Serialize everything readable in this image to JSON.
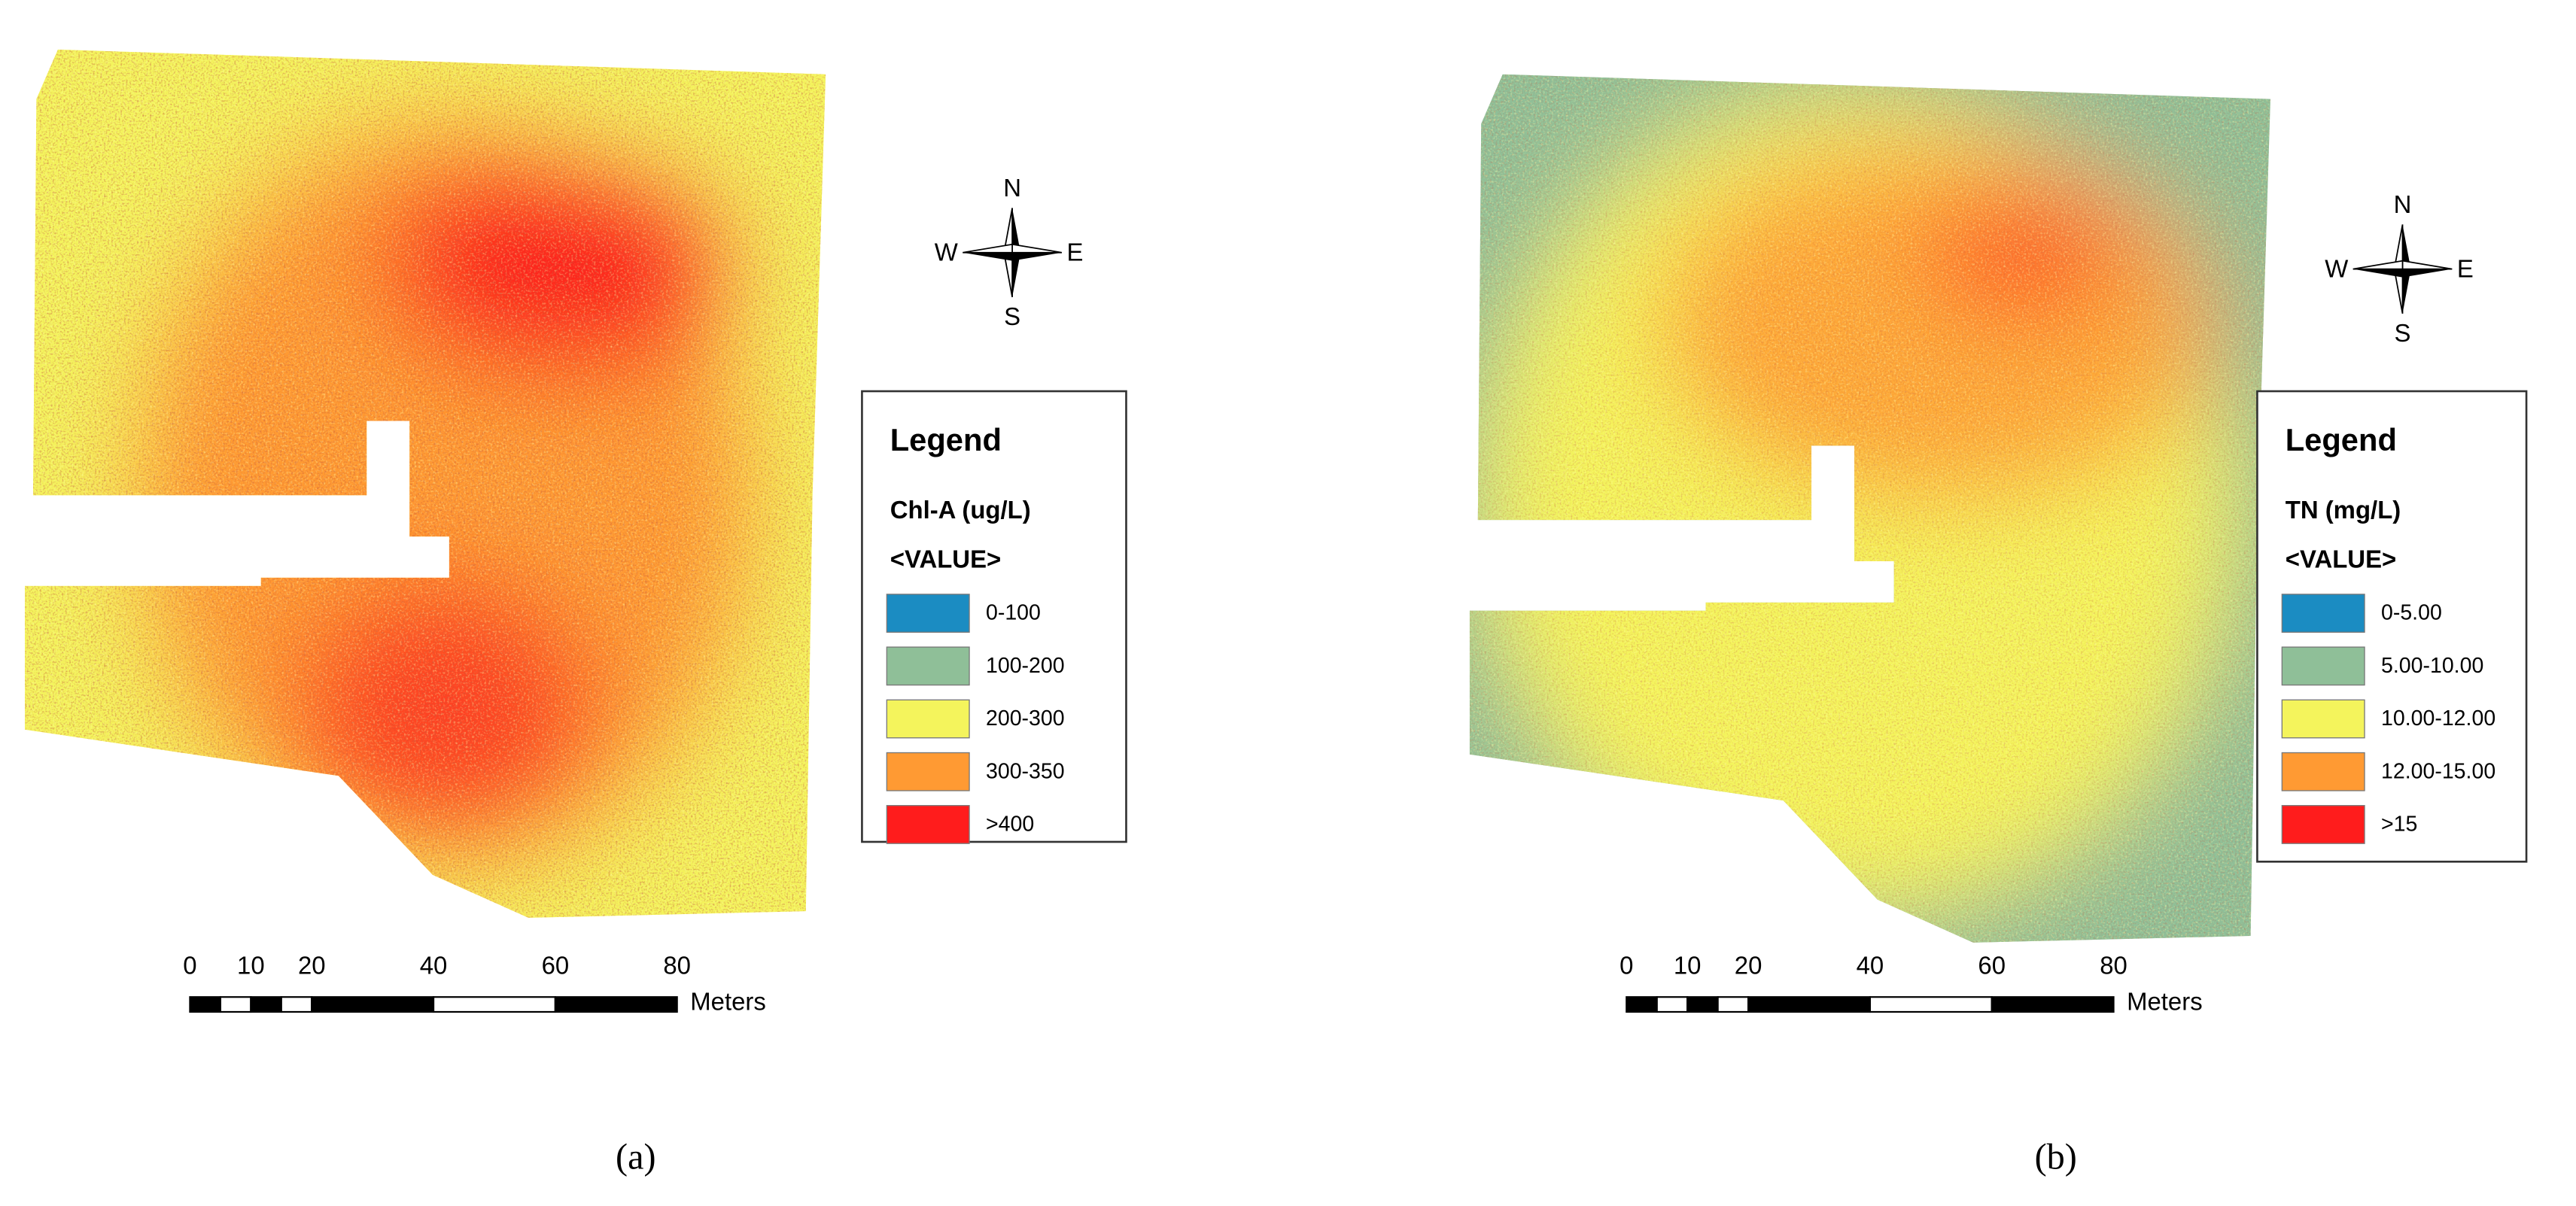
{
  "panels": [
    {
      "legend": {
        "title": "Legend",
        "field": "Chl-A (ug/L)",
        "value_header": "<VALUE>",
        "classes": [
          {
            "label": "0-100",
            "color": "#1b8cc2"
          },
          {
            "label": "100-200",
            "color": "#8fbf98"
          },
          {
            "label": "200-300",
            "color": "#f4f45c"
          },
          {
            "label": "300-350",
            "color": "#ff9a33"
          },
          {
            "label": ">400",
            "color": "#ff1c1c"
          }
        ]
      },
      "compass": {
        "n": "N",
        "s": "S",
        "e": "E",
        "w": "W"
      },
      "scale_bar": {
        "ticks": [
          0,
          10,
          20,
          40,
          60,
          80
        ],
        "unit": "Meters"
      },
      "caption": "(a)"
    },
    {
      "legend": {
        "title": "Legend",
        "field": "TN (mg/L)",
        "value_header": "<VALUE>",
        "classes": [
          {
            "label": "0-5.00",
            "color": "#1b8cc2"
          },
          {
            "label": "5.00-10.00",
            "color": "#8fbf98"
          },
          {
            "label": "10.00-12.00",
            "color": "#f4f45c"
          },
          {
            "label": "12.00-15.00",
            "color": "#ff9a33"
          },
          {
            "label": ">15",
            "color": "#ff1c1c"
          }
        ]
      },
      "compass": {
        "n": "N",
        "s": "S",
        "e": "E",
        "w": "W"
      },
      "scale_bar": {
        "ticks": [
          0,
          10,
          20,
          40,
          60,
          80
        ],
        "unit": "Meters"
      },
      "caption": "(b)"
    }
  ]
}
